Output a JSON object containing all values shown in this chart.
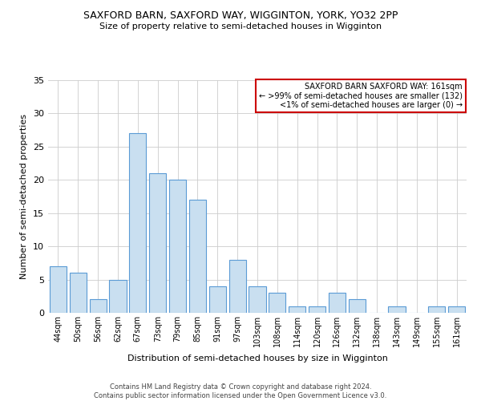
{
  "title": "SAXFORD BARN, SAXFORD WAY, WIGGINTON, YORK, YO32 2PP",
  "subtitle": "Size of property relative to semi-detached houses in Wigginton",
  "xlabel": "Distribution of semi-detached houses by size in Wigginton",
  "ylabel": "Number of semi-detached properties",
  "categories": [
    "44sqm",
    "50sqm",
    "56sqm",
    "62sqm",
    "67sqm",
    "73sqm",
    "79sqm",
    "85sqm",
    "91sqm",
    "97sqm",
    "103sqm",
    "108sqm",
    "114sqm",
    "120sqm",
    "126sqm",
    "132sqm",
    "138sqm",
    "143sqm",
    "149sqm",
    "155sqm",
    "161sqm"
  ],
  "values": [
    7,
    6,
    2,
    5,
    27,
    21,
    20,
    17,
    4,
    8,
    4,
    3,
    1,
    1,
    3,
    2,
    0,
    1,
    0,
    1,
    1
  ],
  "bar_color": "#c9dff0",
  "bar_edge_color": "#5b9bd5",
  "box_text_line1": "SAXFORD BARN SAXFORD WAY: 161sqm",
  "box_text_line2": "← >99% of semi-detached houses are smaller (132)",
  "box_text_line3": "<1% of semi-detached houses are larger (0) →",
  "box_edge_color": "#cc0000",
  "ylim": [
    0,
    35
  ],
  "yticks": [
    0,
    5,
    10,
    15,
    20,
    25,
    30,
    35
  ],
  "footer_line1": "Contains HM Land Registry data © Crown copyright and database right 2024.",
  "footer_line2": "Contains public sector information licensed under the Open Government Licence v3.0.",
  "background_color": "#ffffff",
  "grid_color": "#cccccc"
}
